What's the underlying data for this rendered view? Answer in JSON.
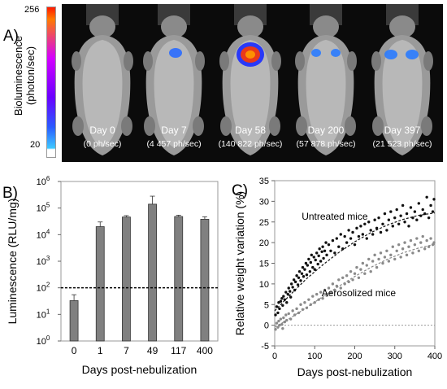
{
  "panel_a": {
    "label": "A)",
    "colorbar": {
      "max_label": "256",
      "min_label": "20",
      "axis_label_line1": "Bioluminescence",
      "axis_label_line2": "(photon/sec)"
    },
    "mice": [
      {
        "day": "Day 0",
        "flux": "(0 ph/sec)"
      },
      {
        "day": "Day 7",
        "flux": "(4 457 ph/sec)"
      },
      {
        "day": "Day 58",
        "flux": "(140 822 ph/sec)"
      },
      {
        "day": "Day 200",
        "flux": "(57 878 ph/sec)"
      },
      {
        "day": "Day 397",
        "flux": "(21 523 ph/sec)"
      }
    ]
  },
  "chart_data": [
    {
      "panel": "B)",
      "type": "bar",
      "categories": [
        "0",
        "1",
        "7",
        "49",
        "117",
        "400"
      ],
      "values": [
        33,
        20000,
        46000,
        140000,
        48000,
        38000
      ],
      "error_upper": [
        55,
        30000,
        52000,
        280000,
        54000,
        47000
      ],
      "ylabel": "Luminescence (RLU/mg)",
      "xlabel": "Days post-nebulization",
      "y_scale": "log",
      "ylim": [
        1,
        1000000
      ],
      "y_ticks": [
        "10⁰",
        "10¹",
        "10²",
        "10³",
        "10⁴",
        "10⁵",
        "10⁶"
      ],
      "threshold_line": 100,
      "bar_color": "#808080"
    },
    {
      "panel": "C)",
      "type": "scatter",
      "xlabel": "Days post-nebulization",
      "ylabel": "Relative weight variation (%)",
      "xlim": [
        0,
        400
      ],
      "ylim": [
        -5,
        35
      ],
      "x_ticks": [
        0,
        100,
        200,
        300,
        400
      ],
      "y_ticks": [
        -5,
        0,
        5,
        10,
        15,
        20,
        25,
        30,
        35
      ],
      "zero_line": 0,
      "series": [
        {
          "name": "Untreated mice",
          "color": "#111111",
          "fit": [
            [
              0,
              3.5
            ],
            [
              40,
              7.5
            ],
            [
              80,
              11.3
            ],
            [
              120,
              14.6
            ],
            [
              160,
              17.6
            ],
            [
              200,
              20.2
            ],
            [
              240,
              22.4
            ],
            [
              280,
              24.2
            ],
            [
              320,
              25.6
            ],
            [
              360,
              26.6
            ],
            [
              400,
              27.2
            ]
          ],
          "points": [
            [
              2,
              2.5
            ],
            [
              5,
              4.5
            ],
            [
              8,
              3.0
            ],
            [
              10,
              5.5
            ],
            [
              12,
              4.0
            ],
            [
              15,
              5.8
            ],
            [
              18,
              6.5
            ],
            [
              20,
              4.8
            ],
            [
              22,
              7.0
            ],
            [
              25,
              6.2
            ],
            [
              28,
              8.0
            ],
            [
              30,
              5.5
            ],
            [
              33,
              7.5
            ],
            [
              35,
              9.0
            ],
            [
              38,
              8.2
            ],
            [
              40,
              6.8
            ],
            [
              42,
              10.0
            ],
            [
              45,
              9.2
            ],
            [
              48,
              11.0
            ],
            [
              50,
              8.5
            ],
            [
              52,
              10.5
            ],
            [
              55,
              12.0
            ],
            [
              58,
              9.8
            ],
            [
              60,
              11.5
            ],
            [
              62,
              13.0
            ],
            [
              65,
              10.8
            ],
            [
              68,
              12.5
            ],
            [
              70,
              14.0
            ],
            [
              72,
              11.8
            ],
            [
              75,
              13.5
            ],
            [
              78,
              15.0
            ],
            [
              80,
              12.2
            ],
            [
              82,
              14.5
            ],
            [
              85,
              16.0
            ],
            [
              88,
              13.0
            ],
            [
              90,
              15.2
            ],
            [
              92,
              17.0
            ],
            [
              95,
              14.0
            ],
            [
              98,
              16.5
            ],
            [
              100,
              13.5
            ],
            [
              102,
              15.8
            ],
            [
              105,
              17.5
            ],
            [
              108,
              14.8
            ],
            [
              110,
              16.8
            ],
            [
              112,
              18.5
            ],
            [
              115,
              15.5
            ],
            [
              118,
              17.8
            ],
            [
              120,
              19.0
            ],
            [
              122,
              16.2
            ],
            [
              125,
              18.0
            ],
            [
              128,
              20.0
            ],
            [
              130,
              17.0
            ],
            [
              135,
              19.5
            ],
            [
              140,
              18.0
            ],
            [
              145,
              20.5
            ],
            [
              150,
              17.5
            ],
            [
              155,
              21.0
            ],
            [
              160,
              19.0
            ],
            [
              165,
              22.0
            ],
            [
              170,
              18.5
            ],
            [
              175,
              21.5
            ],
            [
              180,
              20.0
            ],
            [
              185,
              23.0
            ],
            [
              190,
              21.0
            ],
            [
              195,
              22.5
            ],
            [
              200,
              19.5
            ],
            [
              205,
              23.5
            ],
            [
              210,
              21.5
            ],
            [
              215,
              24.0
            ],
            [
              220,
              22.0
            ],
            [
              225,
              24.5
            ],
            [
              230,
              21.0
            ],
            [
              235,
              25.0
            ],
            [
              240,
              23.0
            ],
            [
              245,
              22.0
            ],
            [
              250,
              25.5
            ],
            [
              255,
              23.5
            ],
            [
              260,
              26.0
            ],
            [
              265,
              22.5
            ],
            [
              270,
              24.5
            ],
            [
              275,
              27.0
            ],
            [
              280,
              23.0
            ],
            [
              285,
              25.5
            ],
            [
              290,
              27.5
            ],
            [
              295,
              24.0
            ],
            [
              300,
              26.0
            ],
            [
              305,
              28.0
            ],
            [
              310,
              24.5
            ],
            [
              315,
              26.5
            ],
            [
              320,
              29.0
            ],
            [
              325,
              25.0
            ],
            [
              330,
              27.0
            ],
            [
              335,
              24.0
            ],
            [
              340,
              28.5
            ],
            [
              345,
              26.0
            ],
            [
              350,
              27.5
            ],
            [
              355,
              25.5
            ],
            [
              360,
              29.5
            ],
            [
              365,
              26.5
            ],
            [
              370,
              28.0
            ],
            [
              375,
              27.0
            ],
            [
              380,
              31.0
            ],
            [
              385,
              26.0
            ],
            [
              390,
              29.0
            ],
            [
              395,
              27.5
            ],
            [
              398,
              30.5
            ]
          ]
        },
        {
          "name": "Aerosolized mice",
          "color": "#8a8a8a",
          "fit": [
            [
              0,
              -0.5
            ],
            [
              40,
              1.8
            ],
            [
              80,
              4.3
            ],
            [
              120,
              6.9
            ],
            [
              160,
              9.4
            ],
            [
              200,
              11.8
            ],
            [
              240,
              14.0
            ],
            [
              280,
              15.9
            ],
            [
              320,
              17.5
            ],
            [
              360,
              18.7
            ],
            [
              400,
              19.6
            ]
          ],
          "points": [
            [
              2,
              -1.0
            ],
            [
              5,
              0.5
            ],
            [
              8,
              -0.5
            ],
            [
              10,
              1.0
            ],
            [
              12,
              0.0
            ],
            [
              15,
              1.5
            ],
            [
              18,
              0.2
            ],
            [
              20,
              -0.8
            ],
            [
              22,
              1.8
            ],
            [
              25,
              0.8
            ],
            [
              28,
              2.5
            ],
            [
              30,
              1.2
            ],
            [
              35,
              2.8
            ],
            [
              40,
              1.5
            ],
            [
              45,
              3.5
            ],
            [
              50,
              2.5
            ],
            [
              55,
              4.0
            ],
            [
              60,
              3.0
            ],
            [
              65,
              5.0
            ],
            [
              70,
              3.8
            ],
            [
              75,
              5.5
            ],
            [
              80,
              4.2
            ],
            [
              85,
              6.2
            ],
            [
              90,
              5.0
            ],
            [
              95,
              7.0
            ],
            [
              100,
              5.5
            ],
            [
              105,
              7.5
            ],
            [
              110,
              6.2
            ],
            [
              115,
              8.0
            ],
            [
              120,
              6.5
            ],
            [
              125,
              8.5
            ],
            [
              130,
              7.2
            ],
            [
              135,
              9.0
            ],
            [
              140,
              7.8
            ],
            [
              145,
              10.0
            ],
            [
              150,
              8.5
            ],
            [
              155,
              9.5
            ],
            [
              160,
              11.0
            ],
            [
              165,
              9.0
            ],
            [
              170,
              11.5
            ],
            [
              175,
              10.0
            ],
            [
              180,
              12.0
            ],
            [
              185,
              10.5
            ],
            [
              190,
              13.0
            ],
            [
              195,
              11.0
            ],
            [
              200,
              12.5
            ],
            [
              205,
              14.0
            ],
            [
              210,
              11.5
            ],
            [
              215,
              13.5
            ],
            [
              220,
              15.0
            ],
            [
              225,
              12.5
            ],
            [
              230,
              14.5
            ],
            [
              235,
              16.0
            ],
            [
              240,
              13.0
            ],
            [
              245,
              15.5
            ],
            [
              250,
              17.0
            ],
            [
              255,
              14.0
            ],
            [
              260,
              16.0
            ],
            [
              265,
              17.5
            ],
            [
              270,
              15.0
            ],
            [
              275,
              16.5
            ],
            [
              280,
              18.0
            ],
            [
              285,
              15.5
            ],
            [
              290,
              17.0
            ],
            [
              295,
              19.0
            ],
            [
              300,
              16.0
            ],
            [
              305,
              18.0
            ],
            [
              310,
              19.5
            ],
            [
              315,
              16.5
            ],
            [
              320,
              18.5
            ],
            [
              325,
              20.0
            ],
            [
              330,
              17.0
            ],
            [
              335,
              19.0
            ],
            [
              340,
              20.5
            ],
            [
              345,
              17.5
            ],
            [
              350,
              19.5
            ],
            [
              355,
              21.0
            ],
            [
              360,
              18.0
            ],
            [
              365,
              20.0
            ],
            [
              370,
              21.5
            ],
            [
              375,
              18.5
            ],
            [
              380,
              20.5
            ],
            [
              385,
              19.0
            ],
            [
              390,
              21.0
            ],
            [
              395,
              19.5
            ],
            [
              398,
              20.0
            ]
          ]
        }
      ],
      "annotations": [
        {
          "text": "Untreated mice",
          "x": 150,
          "y": 25.5
        },
        {
          "text": "Aerosolized mice",
          "x": 210,
          "y": 7.0
        }
      ]
    }
  ]
}
